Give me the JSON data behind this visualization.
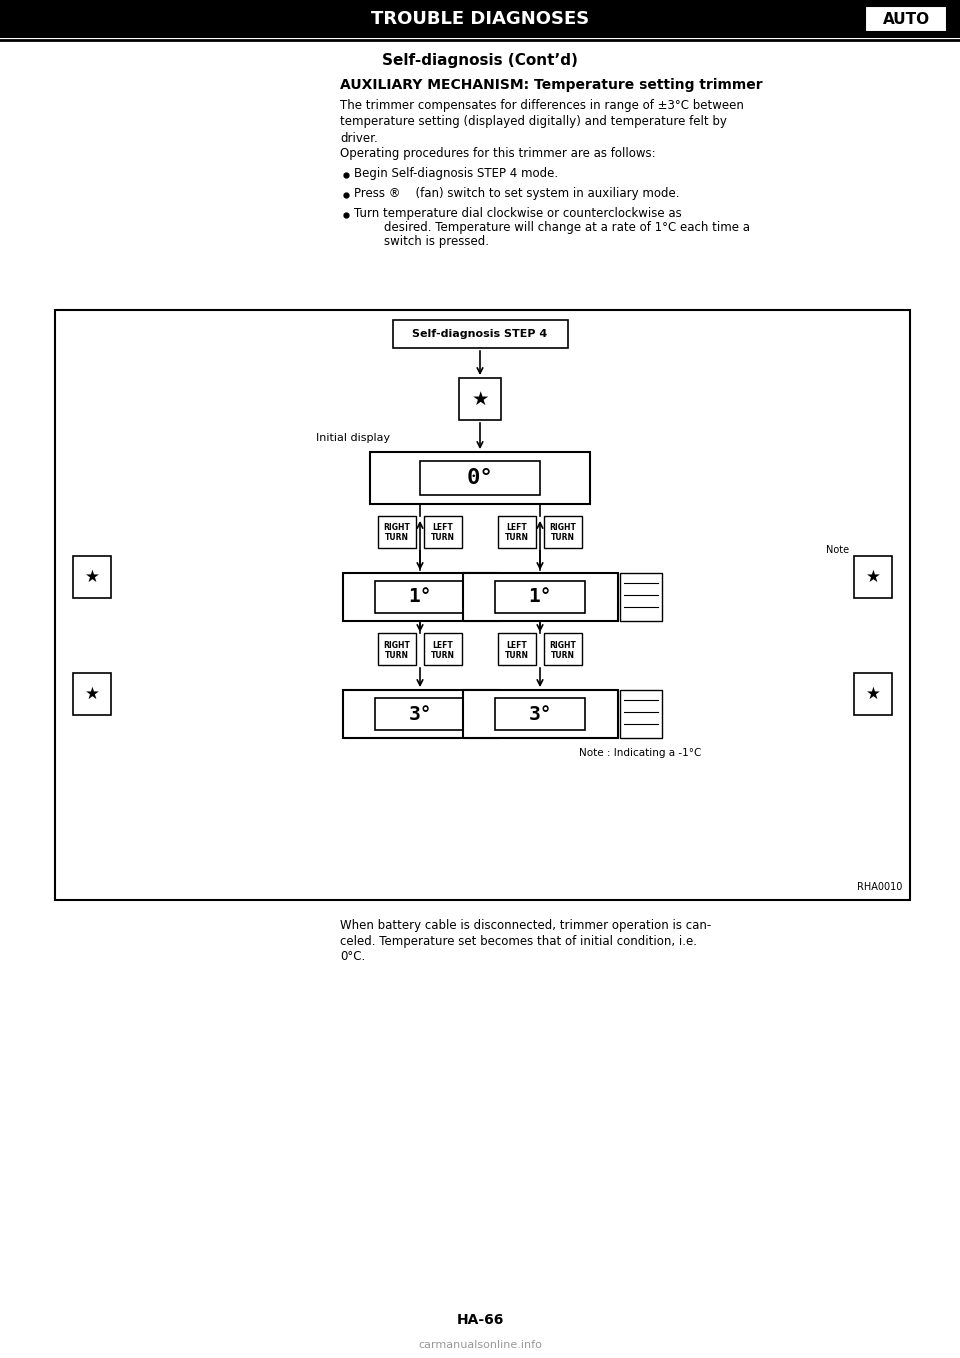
{
  "page_title": "TROUBLE DIAGNOSES",
  "page_tag": "AUTO",
  "section_title": "Self-diagnosis (Cont’d)",
  "subsection_title": "AUXILIARY MECHANISM: Temperature setting trimmer",
  "body_text": [
    "The trimmer compensates for differences in range of ±3°C between",
    "temperature setting (displayed digitally) and temperature felt by",
    "driver.",
    "Operating procedures for this trimmer are as follows:"
  ],
  "bullets": [
    "Begin Self-diagnosis STEP 4 mode.",
    "Press ®    (fan) switch to set system in auxiliary mode.",
    "Turn temperature dial clockwise or counterclockwise as\ndesired. Temperature will change at a rate of 1°C each time a\nswitch is pressed."
  ],
  "footer_text": [
    "When battery cable is disconnected, trimmer operation is can-",
    "celed. Temperature set becomes that of initial condition, i.e.",
    "0°C."
  ],
  "page_number": "HA-66",
  "diagram_ref": "RHA0010",
  "note_text": "Note : Indicating a -1°C",
  "bg_color": "#ffffff",
  "text_color": "#000000",
  "border_color": "#000000"
}
